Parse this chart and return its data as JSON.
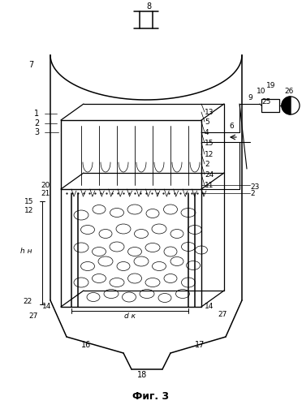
{
  "title": "Фиг. 3",
  "bg_color": "#ffffff",
  "line_color": "#000000",
  "fig_width": 3.72,
  "fig_height": 4.99,
  "dpi": 100
}
